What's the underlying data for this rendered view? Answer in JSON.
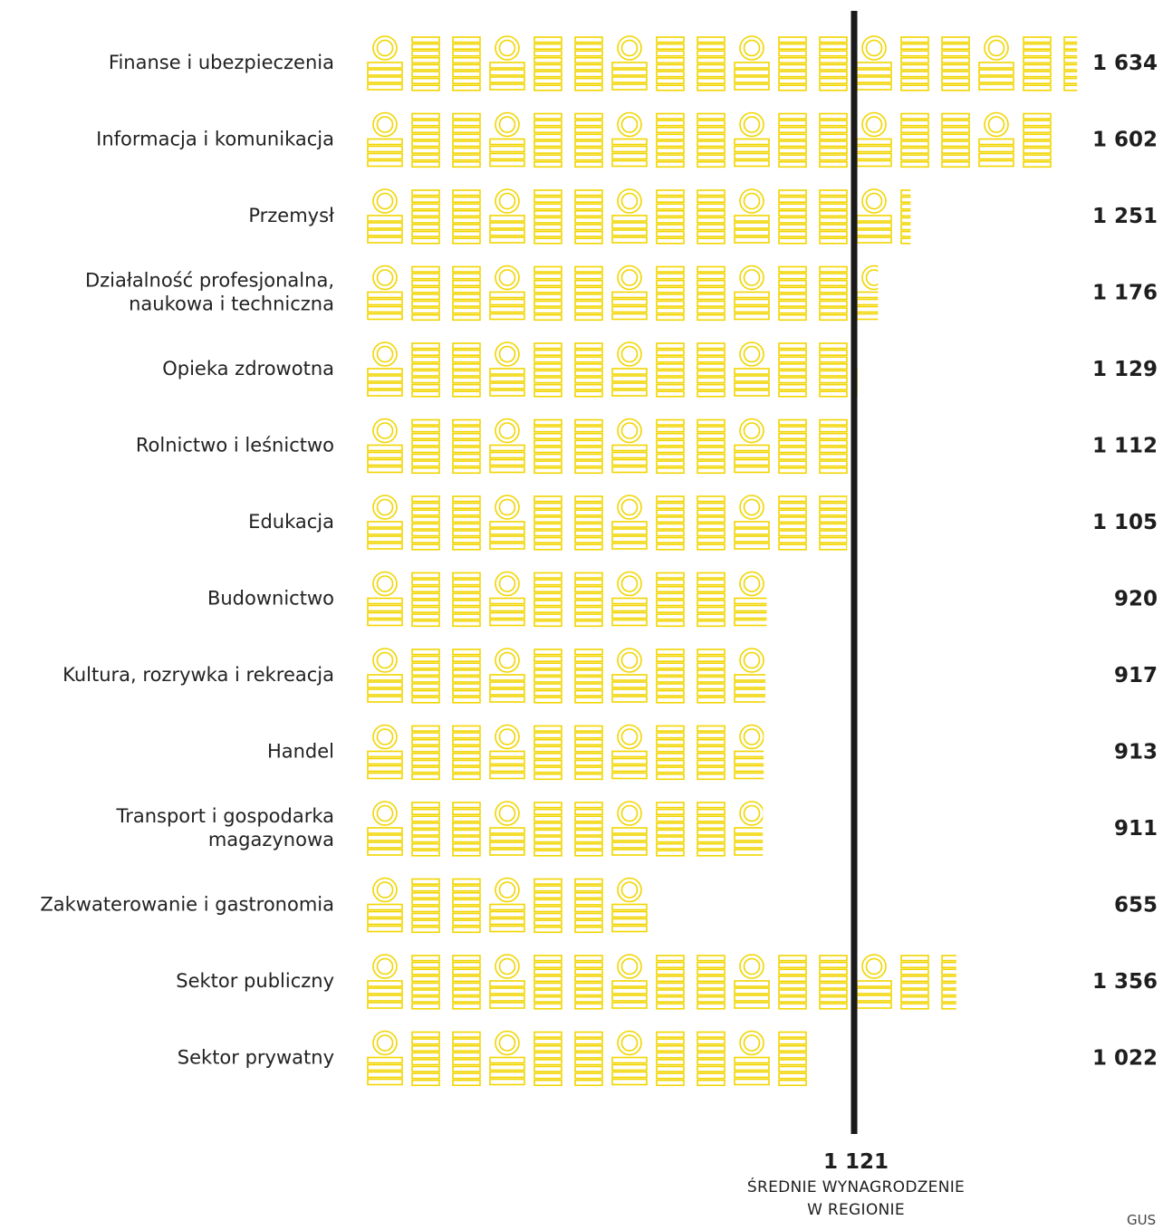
{
  "chart_data": {
    "type": "bar",
    "orientation": "horizontal",
    "style": "pictogram-coin-stacks",
    "color": "#f2d500",
    "reference_line_color": "#1a1a1a",
    "categories": [
      [
        "Finanse i ubezpieczenia"
      ],
      [
        "Informacja i komunikacja"
      ],
      [
        "Przemysł"
      ],
      [
        "Działalność profesjonalna,",
        "naukowa i techniczna"
      ],
      [
        "Opieka zdrowotna"
      ],
      [
        "Rolnictwo i leśnictwo"
      ],
      [
        "Edukacja"
      ],
      [
        "Budownictwo"
      ],
      [
        "Kultura, rozrywka i rekreacja"
      ],
      [
        "Handel"
      ],
      [
        "Transport i gospodarka",
        "magazynowa"
      ],
      [
        "Zakwaterowanie i gastronomia"
      ],
      [
        "Sektor publiczny"
      ],
      [
        "Sektor prywatny"
      ]
    ],
    "values": [
      1634,
      1602,
      1251,
      1176,
      1129,
      1112,
      1105,
      920,
      917,
      913,
      911,
      655,
      1356,
      1022
    ],
    "value_labels": [
      "1 634",
      "1 602",
      "1 251",
      "1 176",
      "1 129",
      "1 112",
      "1 105",
      "920",
      "917",
      "913",
      "911",
      "655",
      "1 356",
      "1 022"
    ],
    "reference_line": {
      "value": 1121,
      "value_label": "1 121",
      "caption": [
        "ŚREDNIE WYNAGRODZENIE",
        "W REGIONIE"
      ]
    },
    "source_fragment": "GUS"
  }
}
